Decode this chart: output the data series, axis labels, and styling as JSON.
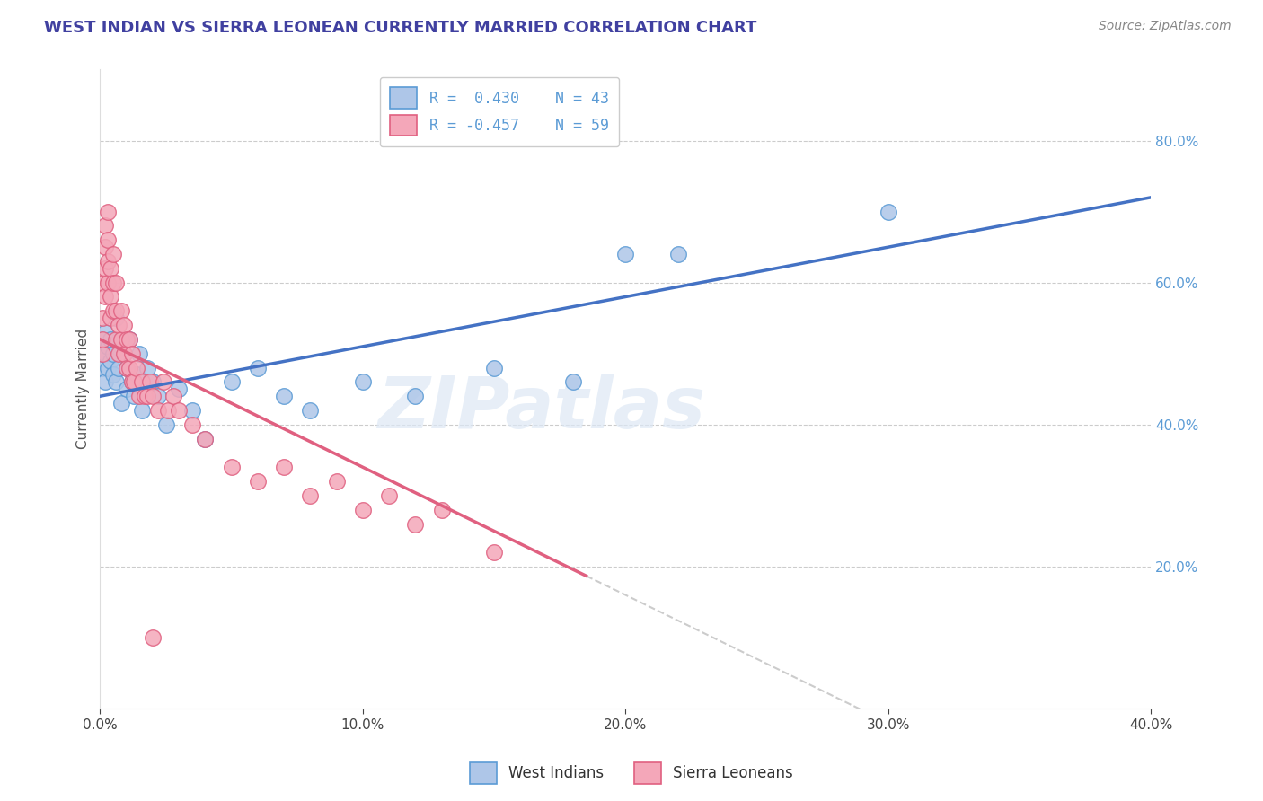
{
  "title": "WEST INDIAN VS SIERRA LEONEAN CURRENTLY MARRIED CORRELATION CHART",
  "source": "Source: ZipAtlas.com",
  "ylabel": "Currently Married",
  "xlim": [
    0.0,
    0.4
  ],
  "ylim": [
    0.0,
    0.9
  ],
  "xticks": [
    0.0,
    0.1,
    0.2,
    0.3,
    0.4
  ],
  "yticks_right": [
    0.2,
    0.4,
    0.6,
    0.8
  ],
  "legend_entries": [
    {
      "label": "R =  0.430    N = 43",
      "color_face": "#aec6e8",
      "color_edge": "#5b9bd5"
    },
    {
      "label": "R = -0.457    N = 59",
      "color_face": "#f4a7b9",
      "color_edge": "#e06080"
    }
  ],
  "west_indian_x": [
    0.001,
    0.001,
    0.001,
    0.002,
    0.002,
    0.002,
    0.003,
    0.003,
    0.004,
    0.004,
    0.005,
    0.005,
    0.006,
    0.006,
    0.007,
    0.008,
    0.009,
    0.01,
    0.01,
    0.011,
    0.012,
    0.013,
    0.014,
    0.015,
    0.016,
    0.018,
    0.02,
    0.022,
    0.025,
    0.03,
    0.035,
    0.04,
    0.05,
    0.06,
    0.07,
    0.08,
    0.1,
    0.12,
    0.15,
    0.18,
    0.2,
    0.22,
    0.3
  ],
  "west_indian_y": [
    0.48,
    0.5,
    0.52,
    0.46,
    0.5,
    0.53,
    0.48,
    0.51,
    0.49,
    0.52,
    0.47,
    0.5,
    0.46,
    0.55,
    0.48,
    0.43,
    0.5,
    0.48,
    0.45,
    0.52,
    0.46,
    0.44,
    0.47,
    0.5,
    0.42,
    0.48,
    0.46,
    0.44,
    0.4,
    0.45,
    0.42,
    0.38,
    0.46,
    0.48,
    0.44,
    0.42,
    0.46,
    0.44,
    0.48,
    0.46,
    0.64,
    0.64,
    0.7
  ],
  "sierra_leonean_x": [
    0.001,
    0.001,
    0.001,
    0.001,
    0.002,
    0.002,
    0.002,
    0.002,
    0.003,
    0.003,
    0.003,
    0.003,
    0.004,
    0.004,
    0.004,
    0.005,
    0.005,
    0.005,
    0.006,
    0.006,
    0.006,
    0.007,
    0.007,
    0.008,
    0.008,
    0.009,
    0.009,
    0.01,
    0.01,
    0.011,
    0.011,
    0.012,
    0.012,
    0.013,
    0.014,
    0.015,
    0.016,
    0.017,
    0.018,
    0.019,
    0.02,
    0.022,
    0.024,
    0.026,
    0.028,
    0.03,
    0.035,
    0.04,
    0.05,
    0.06,
    0.07,
    0.08,
    0.09,
    0.1,
    0.11,
    0.12,
    0.13,
    0.15,
    0.02
  ],
  "sierra_leonean_y": [
    0.5,
    0.52,
    0.55,
    0.6,
    0.58,
    0.62,
    0.65,
    0.68,
    0.6,
    0.63,
    0.66,
    0.7,
    0.55,
    0.58,
    0.62,
    0.56,
    0.6,
    0.64,
    0.52,
    0.56,
    0.6,
    0.5,
    0.54,
    0.52,
    0.56,
    0.5,
    0.54,
    0.48,
    0.52,
    0.48,
    0.52,
    0.46,
    0.5,
    0.46,
    0.48,
    0.44,
    0.46,
    0.44,
    0.44,
    0.46,
    0.44,
    0.42,
    0.46,
    0.42,
    0.44,
    0.42,
    0.4,
    0.38,
    0.34,
    0.32,
    0.34,
    0.3,
    0.32,
    0.28,
    0.3,
    0.26,
    0.28,
    0.22,
    0.1
  ],
  "wi_line_slope": 0.7,
  "wi_line_intercept": 0.44,
  "sl_line_slope": -1.8,
  "sl_line_intercept": 0.52,
  "sl_line_solid_end": 0.185,
  "watermark_text": "ZIPatlas",
  "title_color": "#4040a0",
  "scatter_blue_face": "#aec6e8",
  "scatter_blue_edge": "#5b9bd5",
  "scatter_pink_face": "#f4a7b9",
  "scatter_pink_edge": "#e06080",
  "line_blue_color": "#4472c4",
  "line_pink_color": "#e06080",
  "line_dash_color": "#cccccc",
  "grid_color": "#cccccc",
  "right_tick_color": "#5b9bd5",
  "background_color": "#ffffff"
}
